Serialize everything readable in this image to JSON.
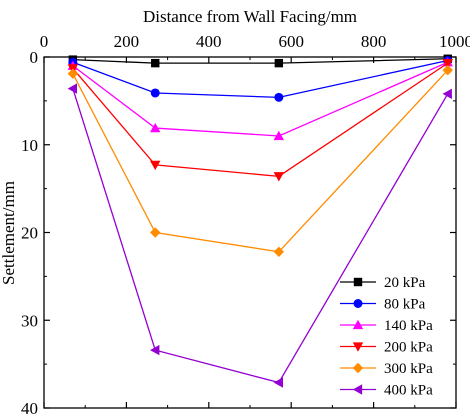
{
  "chart_data": {
    "type": "line",
    "xlabel": "Distance from Wall Facing/mm",
    "ylabel": "Settlement/mm",
    "x_axis_position": "top",
    "y_axis_inverted": true,
    "xlim": [
      0,
      1000
    ],
    "ylim": [
      0,
      40
    ],
    "xticks": [
      "0",
      "200",
      "400",
      "600",
      "800",
      "1000"
    ],
    "yticks": [
      "0",
      "10",
      "20",
      "30",
      "40"
    ],
    "grid": false,
    "legend_position": "bottom-right",
    "x": [
      70,
      270,
      570,
      980
    ],
    "series": [
      {
        "name": "20 kPa",
        "color": "#000000",
        "marker": "square",
        "values": [
          0.3,
          0.7,
          0.7,
          0.2
        ]
      },
      {
        "name": "80 kPa",
        "color": "#0000ff",
        "marker": "circle",
        "values": [
          0.6,
          4.1,
          4.6,
          0.4
        ]
      },
      {
        "name": "140 kPa",
        "color": "#ff00ff",
        "marker": "triangle-up",
        "values": [
          1.0,
          8.1,
          9.0,
          0.6
        ]
      },
      {
        "name": "200 kPa",
        "color": "#ff0000",
        "marker": "triangle-down",
        "values": [
          1.3,
          12.3,
          13.6,
          0.7
        ]
      },
      {
        "name": "300 kPa",
        "color": "#ff8c00",
        "marker": "diamond",
        "values": [
          1.9,
          20.0,
          22.2,
          1.5
        ]
      },
      {
        "name": "400 kPa",
        "color": "#9400d3",
        "marker": "triangle-left",
        "values": [
          3.6,
          33.4,
          37.1,
          4.2
        ]
      }
    ]
  }
}
